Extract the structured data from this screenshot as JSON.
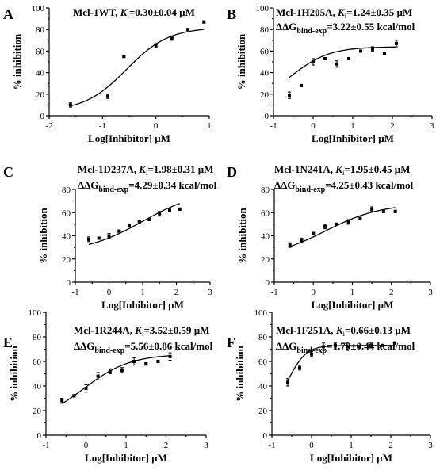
{
  "chart_data": [
    {
      "type": "scatter",
      "letter": "A",
      "title_main": "Mcl-1WT, ",
      "title_k": "K",
      "title_ksub": "i",
      "title_val": "=0.30±0.04 µM",
      "dg_prefix": "",
      "dg_sub": "",
      "dg_val": "",
      "xlabel": "Log[Inhibitor] µM",
      "ylabel": "% inhibition",
      "xlim": [
        -2,
        1
      ],
      "ylim": [
        0,
        100
      ],
      "xticks": [
        "-2",
        "-1",
        "0",
        "1"
      ],
      "yticks": [
        "0",
        "20",
        "40",
        "60",
        "80",
        "100"
      ],
      "fit": {
        "bottom": 4,
        "top": 82,
        "logec50": -0.55,
        "hill": 1.1
      },
      "points": [
        {
          "x": -1.6,
          "y": 10,
          "err": 2
        },
        {
          "x": -0.9,
          "y": 18,
          "err": 2
        },
        {
          "x": -0.6,
          "y": 55,
          "err": 1
        },
        {
          "x": 0.0,
          "y": 65,
          "err": 2
        },
        {
          "x": 0.3,
          "y": 72,
          "err": 2
        },
        {
          "x": 0.6,
          "y": 80,
          "err": 1
        },
        {
          "x": 0.9,
          "y": 87,
          "err": 1
        }
      ]
    },
    {
      "type": "scatter",
      "letter": "B",
      "title_main": "Mcl-1H205A, ",
      "title_k": "K",
      "title_ksub": "i",
      "title_val": "=1.24±0.35 µM",
      "dg_prefix": "ΔΔG",
      "dg_sub": "bind-exp",
      "dg_val": "=3.22±0.55 kcal/mol",
      "xlabel": "Log[Inhibitor] µM",
      "ylabel": "% inhibition",
      "xlim": [
        -1,
        3
      ],
      "ylim": [
        0,
        100
      ],
      "xticks": [
        "-1",
        "0",
        "1",
        "2",
        "3"
      ],
      "yticks": [
        "0",
        "20",
        "40",
        "60",
        "80",
        "100"
      ],
      "fit": {
        "bottom": 10,
        "top": 64,
        "logec50": -0.55,
        "hill": 0.9
      },
      "points": [
        {
          "x": -0.6,
          "y": 19,
          "err": 3
        },
        {
          "x": -0.3,
          "y": 28,
          "err": 1
        },
        {
          "x": 0.0,
          "y": 50,
          "err": 3
        },
        {
          "x": 0.3,
          "y": 53,
          "err": 1
        },
        {
          "x": 0.6,
          "y": 48,
          "err": 3
        },
        {
          "x": 0.9,
          "y": 53,
          "err": 1
        },
        {
          "x": 1.2,
          "y": 60,
          "err": 1
        },
        {
          "x": 1.5,
          "y": 62,
          "err": 2
        },
        {
          "x": 1.8,
          "y": 58,
          "err": 1
        },
        {
          "x": 2.1,
          "y": 67,
          "err": 3
        }
      ]
    },
    {
      "type": "scatter",
      "letter": "C",
      "title_main": "Mcl-1D237A, ",
      "title_k": "K",
      "title_ksub": "i",
      "title_val": "=1.98±0.31 µM",
      "dg_prefix": "ΔΔG",
      "dg_sub": "bind-exp",
      "dg_val": "=4.29±0.34 kcal/mol",
      "xlabel": "Log[Inhibitor] µM",
      "ylabel": "% inhibition",
      "xlim": [
        -1,
        3
      ],
      "ylim": [
        0,
        80
      ],
      "xticks": [
        "-1",
        "0",
        "1",
        "2",
        "3"
      ],
      "yticks": [
        "0",
        "20",
        "40",
        "60",
        "80"
      ],
      "fit": {
        "bottom": 25,
        "top": 80,
        "logec50": 1.0,
        "hill": 0.5
      },
      "points": [
        {
          "x": -0.6,
          "y": 37,
          "err": 2
        },
        {
          "x": -0.3,
          "y": 38,
          "err": 1
        },
        {
          "x": 0.0,
          "y": 40,
          "err": 2
        },
        {
          "x": 0.3,
          "y": 44,
          "err": 1
        },
        {
          "x": 0.6,
          "y": 49,
          "err": 1
        },
        {
          "x": 0.9,
          "y": 52,
          "err": 1
        },
        {
          "x": 1.2,
          "y": 54,
          "err": 1
        },
        {
          "x": 1.5,
          "y": 59,
          "err": 2
        },
        {
          "x": 1.8,
          "y": 62,
          "err": 1
        },
        {
          "x": 2.1,
          "y": 63,
          "err": 1
        }
      ]
    },
    {
      "type": "scatter",
      "letter": "D",
      "title_main": "Mcl-1N241A, ",
      "title_k": "K",
      "title_ksub": "i",
      "title_val": "=1.95±0.45 µM",
      "dg_prefix": "ΔΔG",
      "dg_sub": "bind-exp",
      "dg_val": "=4.25±0.43 kcal/mol",
      "xlabel": "Log[Inhibitor] µM",
      "ylabel": "% inhibition",
      "xlim": [
        -1,
        3
      ],
      "ylim": [
        0,
        80
      ],
      "xticks": [
        "-1",
        "0",
        "1",
        "2",
        "3"
      ],
      "yticks": [
        "0",
        "20",
        "40",
        "60",
        "80"
      ],
      "fit": {
        "bottom": 20,
        "top": 68,
        "logec50": 0.3,
        "hill": 0.6
      },
      "points": [
        {
          "x": -0.6,
          "y": 32,
          "err": 2
        },
        {
          "x": -0.3,
          "y": 36,
          "err": 2
        },
        {
          "x": 0.0,
          "y": 42,
          "err": 1
        },
        {
          "x": 0.3,
          "y": 48,
          "err": 2
        },
        {
          "x": 0.6,
          "y": 50,
          "err": 1
        },
        {
          "x": 0.9,
          "y": 52,
          "err": 2
        },
        {
          "x": 1.2,
          "y": 55,
          "err": 1
        },
        {
          "x": 1.5,
          "y": 63,
          "err": 2
        },
        {
          "x": 1.8,
          "y": 61,
          "err": 1
        },
        {
          "x": 2.1,
          "y": 61,
          "err": 1
        }
      ]
    },
    {
      "type": "scatter",
      "letter": "E",
      "title_main": "Mcl-1R244A, ",
      "title_k": "K",
      "title_ksub": "i",
      "title_val": "=3.52±0.59 µM",
      "dg_prefix": "ΔΔG",
      "dg_sub": "bind-exp",
      "dg_val": "=5.56±0.86 kcal/mol",
      "xlabel": "Log[Inhibitor] µM",
      "ylabel": "% inhibition",
      "xlim": [
        -1,
        3
      ],
      "ylim": [
        0,
        100
      ],
      "xticks": [
        "-1",
        "0",
        "1",
        "2",
        "3"
      ],
      "yticks": [
        "0",
        "20",
        "40",
        "60",
        "80",
        "100"
      ],
      "fit": {
        "bottom": 10,
        "top": 66,
        "logec50": -0.05,
        "hill": 0.75
      },
      "points": [
        {
          "x": -0.6,
          "y": 28,
          "err": 2
        },
        {
          "x": -0.3,
          "y": 32,
          "err": 1
        },
        {
          "x": 0.0,
          "y": 38,
          "err": 3
        },
        {
          "x": 0.3,
          "y": 48,
          "err": 3
        },
        {
          "x": 0.6,
          "y": 52,
          "err": 2
        },
        {
          "x": 0.9,
          "y": 53,
          "err": 2
        },
        {
          "x": 1.2,
          "y": 60,
          "err": 3
        },
        {
          "x": 1.5,
          "y": 58,
          "err": 1
        },
        {
          "x": 1.8,
          "y": 60,
          "err": 1
        },
        {
          "x": 2.1,
          "y": 64,
          "err": 3
        }
      ]
    },
    {
      "type": "scatter",
      "letter": "F",
      "title_main": "Mcl-1F251A, ",
      "title_k": "K",
      "title_ksub": "i",
      "title_val": "=0.66±0.13 µM",
      "dg_prefix": "ΔΔG",
      "dg_sub": "bind-exp",
      "dg_val": "=1.79±0.44 kcal/mol",
      "xlabel": "Log[Inhibitor] µM",
      "ylabel": "% inhibition",
      "xlim": [
        -1,
        3
      ],
      "ylim": [
        0,
        100
      ],
      "xticks": [
        "-1",
        "0",
        "1",
        "2",
        "3"
      ],
      "yticks": [
        "0",
        "20",
        "40",
        "60",
        "80",
        "100"
      ],
      "fit": {
        "bottom": 22,
        "top": 73,
        "logec50": -0.55,
        "hill": 2.0
      },
      "points": [
        {
          "x": -0.6,
          "y": 43,
          "err": 3
        },
        {
          "x": -0.3,
          "y": 55,
          "err": 2
        },
        {
          "x": 0.0,
          "y": 66,
          "err": 2
        },
        {
          "x": 0.3,
          "y": 72,
          "err": 3
        },
        {
          "x": 0.6,
          "y": 73,
          "err": 2
        },
        {
          "x": 0.9,
          "y": 72,
          "err": 3
        },
        {
          "x": 1.2,
          "y": 72,
          "err": 1
        },
        {
          "x": 1.5,
          "y": 73,
          "err": 2
        },
        {
          "x": 1.8,
          "y": 73,
          "err": 1
        },
        {
          "x": 2.1,
          "y": 75,
          "err": 1
        }
      ]
    }
  ]
}
